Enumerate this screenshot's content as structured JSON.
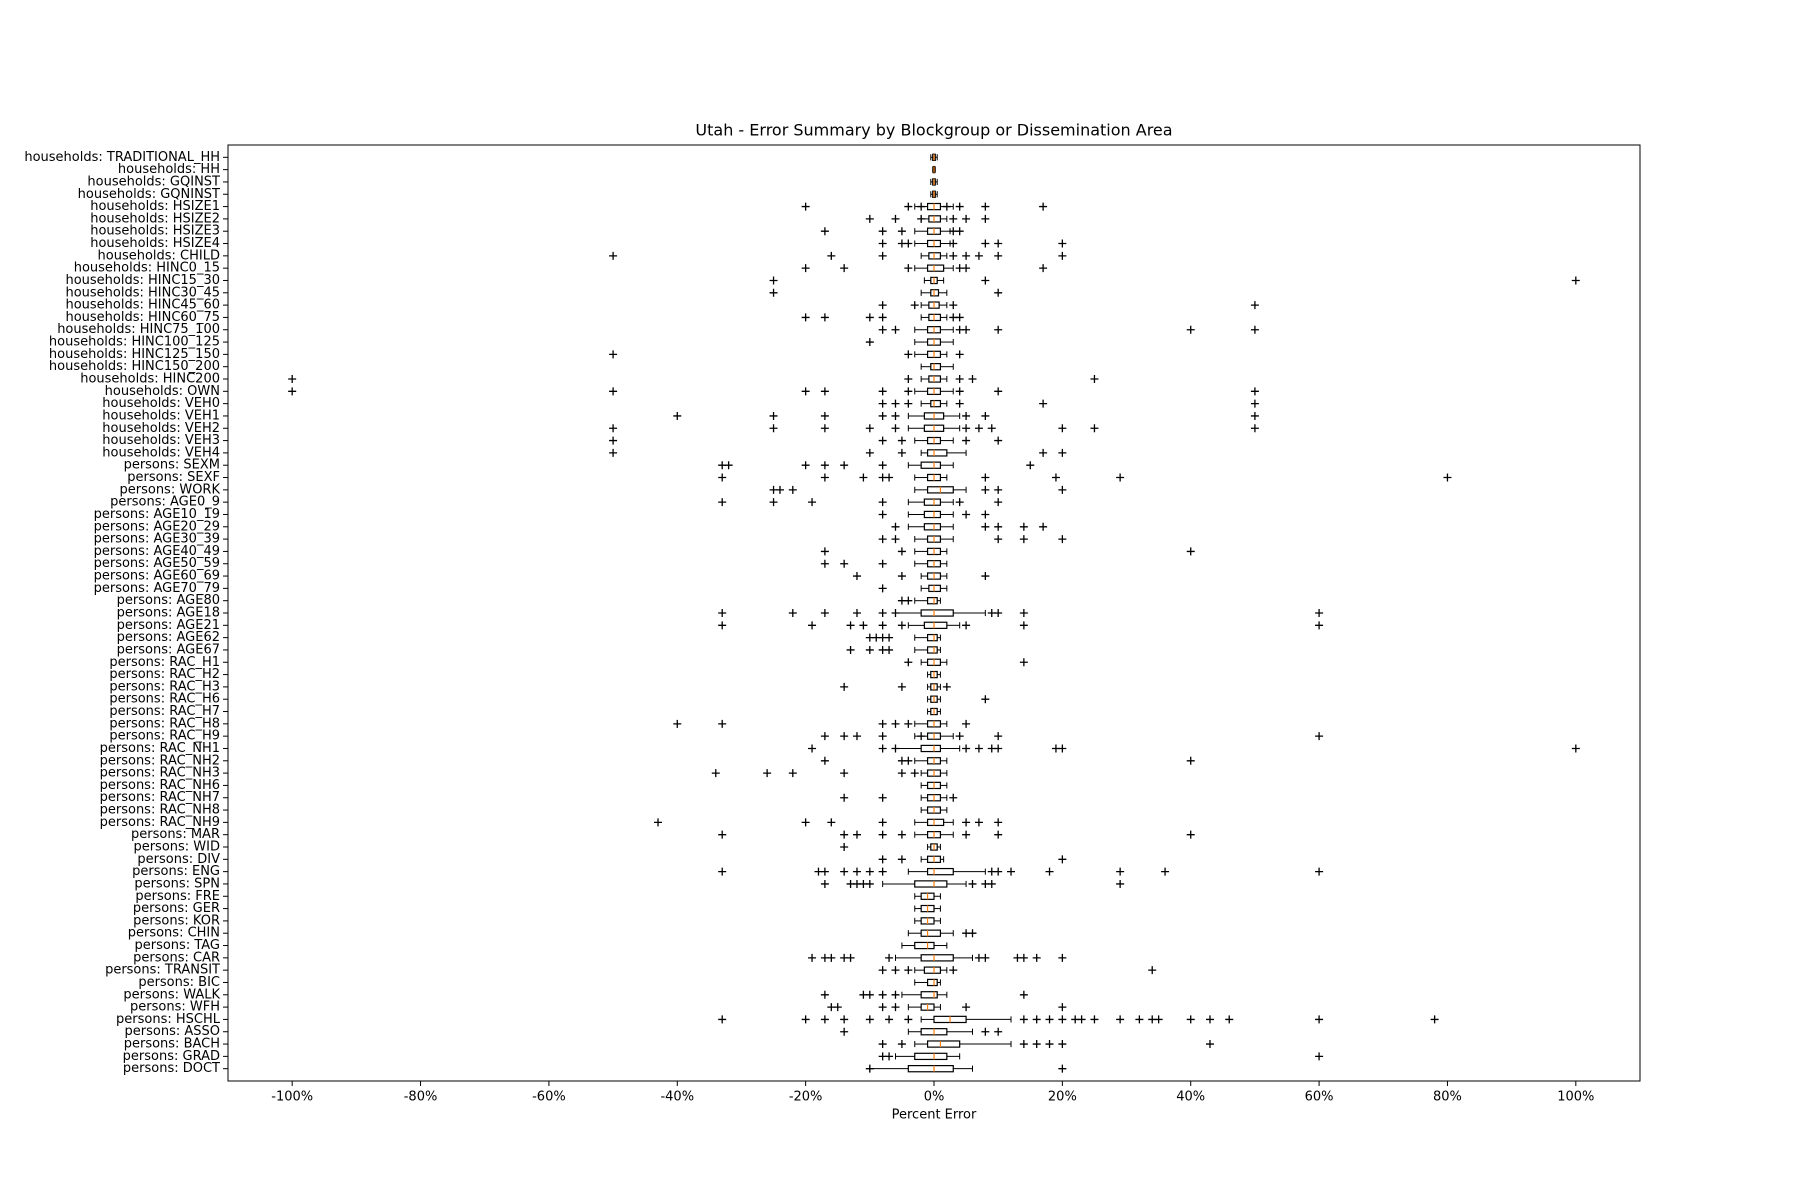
{
  "chart_data": {
    "type": "boxplot",
    "orientation": "horizontal",
    "title": "Utah - Error Summary by Blockgroup or Dissemination Area",
    "xlabel": "Percent Error",
    "xlim": [
      -110,
      110
    ],
    "xticks": [
      {
        "value": -100,
        "label": "-100%"
      },
      {
        "value": -80,
        "label": "-80%"
      },
      {
        "value": -60,
        "label": "-60%"
      },
      {
        "value": -40,
        "label": "-40%"
      },
      {
        "value": -20,
        "label": "-20%"
      },
      {
        "value": 0,
        "label": "0%"
      },
      {
        "value": 20,
        "label": "20%"
      },
      {
        "value": 40,
        "label": "40%"
      },
      {
        "value": 60,
        "label": "60%"
      },
      {
        "value": 80,
        "label": "80%"
      },
      {
        "value": 100,
        "label": "100%"
      }
    ],
    "box_color": "#000000",
    "median_color": "#ff7f0e",
    "outlier_color": "#000000",
    "categories": [
      "households: TRADITIONAL_HH",
      "households: HH",
      "households: GQINST",
      "households: GQNINST",
      "households: HSIZE1",
      "households: HSIZE2",
      "households: HSIZE3",
      "households: HSIZE4",
      "households: CHILD",
      "households: HINC0_15",
      "households: HINC15_30",
      "households: HINC30_45",
      "households: HINC45_60",
      "households: HINC60_75",
      "households: HINC75_100",
      "households: HINC100_125",
      "households: HINC125_150",
      "households: HINC150_200",
      "households: HINC200",
      "households: OWN",
      "households: VEH0",
      "households: VEH1",
      "households: VEH2",
      "households: VEH3",
      "households: VEH4",
      "persons: SEXM",
      "persons: SEXF",
      "persons: WORK",
      "persons: AGE0_9",
      "persons: AGE10_19",
      "persons: AGE20_29",
      "persons: AGE30_39",
      "persons: AGE40_49",
      "persons: AGE50_59",
      "persons: AGE60_69",
      "persons: AGE70_79",
      "persons: AGE80",
      "persons: AGE18",
      "persons: AGE21",
      "persons: AGE62",
      "persons: AGE67",
      "persons: RAC_H1",
      "persons: RAC_H2",
      "persons: RAC_H3",
      "persons: RAC_H6",
      "persons: RAC_H7",
      "persons: RAC_H8",
      "persons: RAC_H9",
      "persons: RAC_NH1",
      "persons: RAC_NH2",
      "persons: RAC_NH3",
      "persons: RAC_NH6",
      "persons: RAC_NH7",
      "persons: RAC_NH8",
      "persons: RAC_NH9",
      "persons: MAR",
      "persons: WID",
      "persons: DIV",
      "persons: ENG",
      "persons: SPN",
      "persons: FRE",
      "persons: GER",
      "persons: KOR",
      "persons: CHIN",
      "persons: TAG",
      "persons: CAR",
      "persons: TRANSIT",
      "persons: BIC",
      "persons: WALK",
      "persons: WFH",
      "persons: HSCHL",
      "persons: ASSO",
      "persons: BACH",
      "persons: GRAD",
      "persons: DOCT"
    ],
    "boxes": [
      [
        -0.5,
        -0.2,
        0,
        0.2,
        0.5
      ],
      [
        -0.2,
        -0.1,
        0,
        0.1,
        0.2
      ],
      [
        -0.5,
        -0.2,
        0,
        0.2,
        0.5
      ],
      [
        -0.5,
        -0.2,
        0,
        0.2,
        0.5
      ],
      [
        -3,
        -1,
        0,
        1,
        3
      ],
      [
        -2,
        -0.8,
        0,
        1,
        2
      ],
      [
        -3,
        -1,
        0,
        1,
        2.5
      ],
      [
        -3,
        -1,
        0,
        1,
        2.5
      ],
      [
        -2,
        -0.8,
        0,
        1,
        2
      ],
      [
        -3,
        -1,
        0,
        1.5,
        3
      ],
      [
        -1.5,
        -0.5,
        0,
        0.5,
        1.5
      ],
      [
        -2,
        -0.5,
        0,
        0.7,
        2
      ],
      [
        -2,
        -0.8,
        0,
        0.8,
        2
      ],
      [
        -2,
        -0.8,
        0,
        1,
        2
      ],
      [
        -3,
        -1,
        0,
        1,
        3
      ],
      [
        -3,
        -1,
        0,
        1,
        3
      ],
      [
        -3,
        -1,
        0,
        1,
        2
      ],
      [
        -2,
        -0.5,
        0,
        1,
        3
      ],
      [
        -2,
        -0.8,
        0,
        1,
        2
      ],
      [
        -3,
        -1,
        0,
        1,
        3
      ],
      [
        -2,
        -0.5,
        0,
        1,
        2
      ],
      [
        -4,
        -1.5,
        0,
        1.5,
        4
      ],
      [
        -4,
        -1.5,
        0,
        1.5,
        4
      ],
      [
        -3,
        -1,
        0,
        1,
        3
      ],
      [
        -2,
        -1,
        0,
        2,
        5
      ],
      [
        -4,
        -2,
        0,
        1,
        3
      ],
      [
        -3,
        -1,
        0,
        1,
        2
      ],
      [
        -3,
        -1,
        1,
        3,
        5
      ],
      [
        -4,
        -1.5,
        0,
        1,
        3
      ],
      [
        -4,
        -1.5,
        0,
        1,
        3
      ],
      [
        -4,
        -1.5,
        0,
        1,
        3
      ],
      [
        -3,
        -1,
        0,
        1,
        3
      ],
      [
        -3,
        -1,
        0,
        1,
        2
      ],
      [
        -3,
        -1,
        0,
        1,
        2
      ],
      [
        -2,
        -1,
        0,
        1,
        2
      ],
      [
        -2,
        -0.8,
        0,
        1,
        2
      ],
      [
        -3,
        -1,
        0,
        0.5,
        1
      ],
      [
        -6,
        -2,
        0,
        3,
        8
      ],
      [
        -4,
        -1.5,
        0,
        2,
        4
      ],
      [
        -3,
        -1,
        0,
        0.5,
        1
      ],
      [
        -3,
        -1,
        0,
        0.5,
        1
      ],
      [
        -2,
        -1,
        0,
        1,
        2
      ],
      [
        -1,
        -0.5,
        0,
        0.5,
        1
      ],
      [
        -1,
        -0.5,
        0,
        0.5,
        1
      ],
      [
        -1,
        -0.5,
        0,
        0.5,
        1
      ],
      [
        -1,
        -0.5,
        0,
        0.5,
        1
      ],
      [
        -3,
        -1,
        0,
        1,
        2
      ],
      [
        -3,
        -1,
        0,
        1,
        3
      ],
      [
        -6,
        -2,
        0,
        1,
        4
      ],
      [
        -3,
        -1,
        0,
        1,
        2
      ],
      [
        -2,
        -1,
        0,
        1,
        2
      ],
      [
        -2,
        -1,
        0,
        1,
        2
      ],
      [
        -2,
        -1,
        0,
        1,
        2
      ],
      [
        -2,
        -1,
        0,
        1,
        2
      ],
      [
        -3,
        -1,
        0,
        1.5,
        3
      ],
      [
        -3,
        -1,
        0,
        1,
        3
      ],
      [
        -1,
        -0.5,
        0,
        0.5,
        1
      ],
      [
        -2,
        -1,
        0,
        1,
        1.5
      ],
      [
        -4,
        -1,
        0,
        3,
        8
      ],
      [
        -8,
        -3,
        0,
        2,
        5
      ],
      [
        -3,
        -2,
        -1,
        0,
        1
      ],
      [
        -3,
        -2,
        -1,
        0,
        1
      ],
      [
        -3,
        -2,
        -1,
        0,
        1
      ],
      [
        -4,
        -2,
        -1,
        1,
        3
      ],
      [
        -5,
        -3,
        -1,
        0,
        2
      ],
      [
        -6,
        -2,
        0,
        3,
        6
      ],
      [
        -3,
        -1.5,
        0,
        1,
        2
      ],
      [
        -3,
        -1,
        0,
        0.5,
        1
      ],
      [
        -5,
        -2,
        0,
        0.5,
        2
      ],
      [
        -4,
        -2,
        -1,
        0,
        1
      ],
      [
        -2,
        0,
        2.5,
        5,
        12
      ],
      [
        -4,
        -2,
        0,
        2,
        6
      ],
      [
        -3,
        -1,
        1,
        4,
        12
      ],
      [
        -6,
        -3,
        0,
        2,
        4
      ],
      [
        -10,
        -4,
        0,
        3,
        6
      ]
    ],
    "outliers": [
      [],
      [],
      [],
      [],
      [
        -20,
        -4,
        -2,
        2,
        4,
        8,
        17
      ],
      [
        -10,
        -6,
        -2,
        3,
        5,
        8
      ],
      [
        -17,
        -8,
        -5,
        3,
        4
      ],
      [
        -8,
        -5,
        -4,
        3,
        8,
        10,
        20
      ],
      [
        -50,
        -16,
        -8,
        3,
        5,
        7,
        10,
        20
      ],
      [
        -20,
        -14,
        -4,
        4,
        5,
        17
      ],
      [
        -25,
        8,
        100
      ],
      [
        -25,
        10
      ],
      [
        -8,
        -3,
        3,
        50
      ],
      [
        -20,
        -17,
        -10,
        -8,
        3,
        4
      ],
      [
        -8,
        -6,
        4,
        5,
        10,
        40,
        50
      ],
      [
        -10
      ],
      [
        -50,
        -4,
        4
      ],
      [],
      [
        -100,
        -4,
        4,
        6,
        25
      ],
      [
        -100,
        -50,
        -20,
        -17,
        -8,
        -4,
        4,
        10,
        50
      ],
      [
        -8,
        -6,
        -4,
        4,
        17,
        50
      ],
      [
        -40,
        -25,
        -17,
        -8,
        -6,
        5,
        8,
        50
      ],
      [
        -50,
        -25,
        -17,
        -10,
        -6,
        5,
        7,
        9,
        20,
        25,
        50
      ],
      [
        -50,
        -8,
        -5,
        5,
        10
      ],
      [
        -50,
        -10,
        -5,
        17,
        20
      ],
      [
        -33,
        -32,
        -20,
        -17,
        -14,
        -8,
        15
      ],
      [
        -33,
        -17,
        -11,
        -8,
        -7,
        8,
        19,
        29,
        80
      ],
      [
        -25,
        -24,
        -22,
        8,
        10,
        20
      ],
      [
        -33,
        -25,
        -19,
        -8,
        4,
        10
      ],
      [
        -8,
        5,
        8
      ],
      [
        -6,
        8,
        10,
        14,
        17
      ],
      [
        -8,
        -6,
        10,
        14,
        20
      ],
      [
        -17,
        -5,
        40
      ],
      [
        -17,
        -14,
        -8
      ],
      [
        -12,
        -5,
        8
      ],
      [
        -8
      ],
      [
        -5,
        -4
      ],
      [
        -33,
        -22,
        -17,
        -12,
        -8,
        -6,
        9,
        10,
        14,
        60
      ],
      [
        -33,
        -19,
        -13,
        -11,
        -8,
        -5,
        5,
        14,
        60
      ],
      [
        -10,
        -9,
        -8,
        -7
      ],
      [
        -13,
        -10,
        -8,
        -7
      ],
      [
        -4,
        14
      ],
      [],
      [
        -14,
        -5,
        2
      ],
      [
        8
      ],
      [],
      [
        -40,
        -33,
        -8,
        -6,
        -4,
        5
      ],
      [
        -17,
        -14,
        -12,
        -8,
        -2,
        4,
        10,
        60
      ],
      [
        -19,
        -8,
        -6,
        5,
        7,
        9,
        10,
        19,
        20,
        100
      ],
      [
        -17,
        -5,
        -4,
        40
      ],
      [
        -34,
        -26,
        -22,
        -14,
        -5,
        -3
      ],
      [],
      [
        -14,
        -8,
        3
      ],
      [],
      [
        -43,
        -20,
        -16,
        -8,
        5,
        7,
        10
      ],
      [
        -33,
        -14,
        -12,
        -8,
        -5,
        5,
        10,
        40
      ],
      [
        -14
      ],
      [
        -8,
        -5,
        20
      ],
      [
        -33,
        -18,
        -17,
        -14,
        -12,
        -10,
        -8,
        9,
        10,
        12,
        18,
        29,
        36,
        60
      ],
      [
        -17,
        -13,
        -12,
        -11,
        -10,
        6,
        8,
        9,
        29
      ],
      [],
      [],
      [],
      [
        5,
        6
      ],
      [],
      [
        -19,
        -17,
        -16,
        -14,
        -13,
        -7,
        7,
        8,
        13,
        14,
        16,
        20
      ],
      [
        -8,
        -6,
        -4,
        3,
        34
      ],
      [],
      [
        -17,
        -11,
        -10,
        -8,
        -6,
        14
      ],
      [
        -16,
        -15,
        -8,
        -6,
        5,
        20
      ],
      [
        -33,
        -20,
        -17,
        -14,
        -10,
        -7,
        -4,
        14,
        16,
        18,
        20,
        22,
        23,
        25,
        29,
        32,
        34,
        35,
        40,
        43,
        46,
        60,
        78
      ],
      [
        -14,
        8,
        10
      ],
      [
        -8,
        -5,
        14,
        16,
        18,
        20,
        43
      ],
      [
        -8,
        -7,
        60
      ],
      [
        -10,
        20
      ]
    ]
  }
}
